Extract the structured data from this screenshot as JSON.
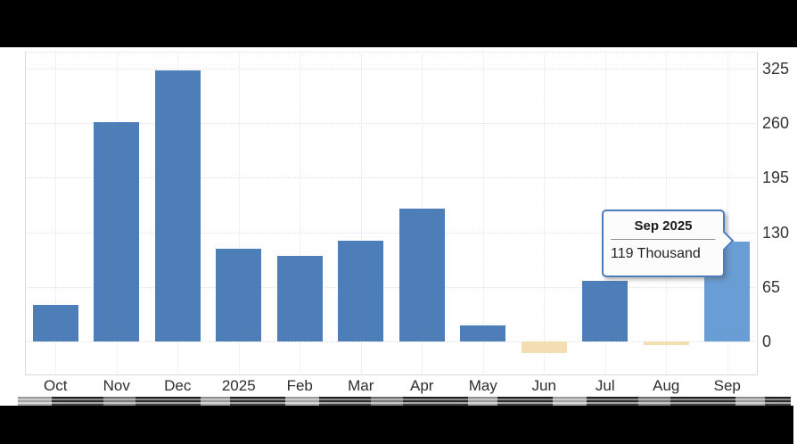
{
  "chart_data": {
    "type": "bar",
    "title": "",
    "categories": [
      "Oct",
      "Nov",
      "Dec",
      "2025",
      "Feb",
      "Mar",
      "Apr",
      "May",
      "Jun",
      "Jul",
      "Aug",
      "Sep"
    ],
    "values": [
      44,
      261,
      323,
      111,
      102,
      120,
      158,
      19,
      -13,
      72,
      -4,
      119
    ],
    "unit": "Thousand",
    "ylabel": "",
    "xlabel": "",
    "ylim": [
      -40,
      345
    ],
    "yticks": [
      0,
      65,
      130,
      195,
      260,
      325
    ],
    "grid": "dotted",
    "legend": "none",
    "y_axis_position": "right",
    "highlighted_index": 11,
    "colors": {
      "bar": "#4e7eb8",
      "bar_highlight": "#689dd6",
      "bar_negative": "#f4ddb1",
      "grid": "#e2e2e2",
      "axis_text": "#2d2d2d",
      "tooltip_border": "#4c7cba"
    }
  },
  "tooltip": {
    "title": "Sep 2025",
    "value": "119 Thousand"
  }
}
